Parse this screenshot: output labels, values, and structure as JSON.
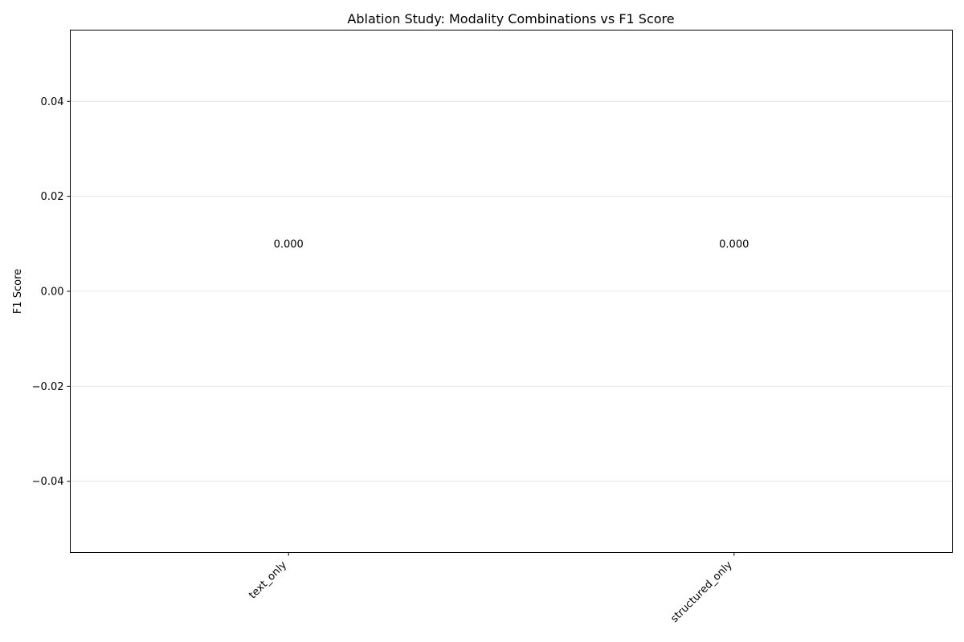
{
  "chart_data": {
    "type": "bar",
    "title": "Ablation Study: Modality Combinations vs F1 Score",
    "xlabel": "",
    "ylabel": "F1 Score",
    "categories": [
      "text_only",
      "structured_only"
    ],
    "values": [
      0.0,
      0.0
    ],
    "data_labels": [
      "0.000",
      "0.000"
    ],
    "ylim": [
      -0.055,
      0.055
    ],
    "yticks": [
      -0.04,
      -0.02,
      0.0,
      0.02,
      0.04
    ],
    "ytick_labels": [
      "−0.04",
      "−0.02",
      "0.00",
      "0.02",
      "0.04"
    ],
    "grid": true,
    "legend": "none",
    "colors": {
      "bar": "#1f77b4",
      "grid": "#b0b0b0",
      "axis": "#000000"
    }
  }
}
